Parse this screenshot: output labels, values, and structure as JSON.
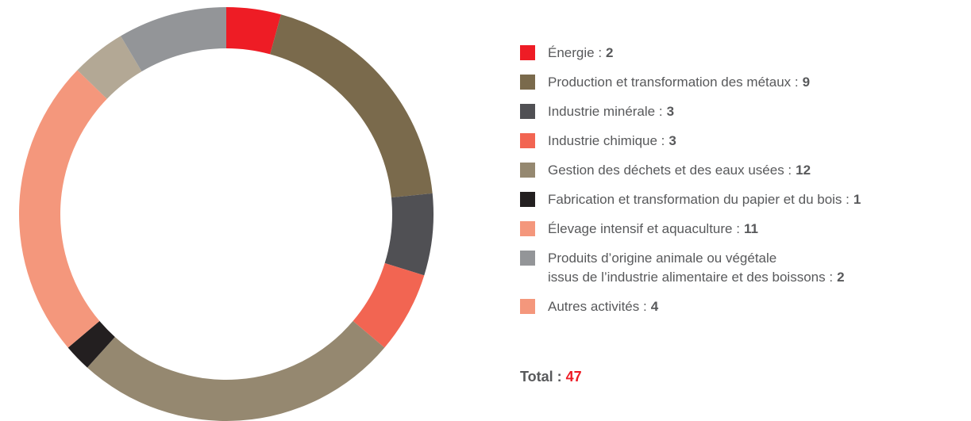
{
  "chart_data": {
    "type": "donut",
    "categories": [
      "Énergie :",
      "Production et transformation des métaux :",
      "Industrie minérale :",
      "Industrie chimique :",
      "Gestion des déchets et des eaux usées :",
      "Fabrication et transformation du papier et du bois :",
      "Élevage intensif et aquaculture :",
      "Produits d’origine animale ou végétale\nissus de l’industrie alimentaire et des boissons :",
      "Autres activités :"
    ],
    "values": [
      2,
      9,
      3,
      3,
      12,
      1,
      11,
      2,
      4
    ],
    "colors": [
      "#ee1c25",
      "#7a6a4c",
      "#505054",
      "#f26552",
      "#958870",
      "#231f20",
      "#f4977c",
      "#b3a895",
      "#939598"
    ],
    "legend_colors": [
      "#ee1c25",
      "#7a6a4c",
      "#505054",
      "#f26552",
      "#958870",
      "#231f20",
      "#f4977c",
      "#939598",
      "#f4977c"
    ],
    "total_label": "Total :",
    "total": 47
  }
}
